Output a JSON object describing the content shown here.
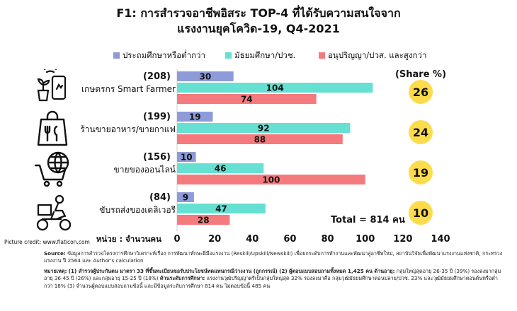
{
  "title": {
    "line1": "F1: การสำรวจอาชีพอิสระ TOP-4 ที่ได้รับความสนใจจาก",
    "line2": "แรงงานยุคโควิด-19, Q4-2021"
  },
  "share_label": "(Share %)",
  "total_label": "Total = 814 คน",
  "unit_label": "หน่วย : จำนวนคน",
  "credit": "Picture credit: www.flaticon.com",
  "notes": {
    "source_head": "Source:",
    "source_text": "ข้อมูลการสำรวจโครงการศึกษาวิเคราะห์เรื่อง การพัฒนาทักษะฝีมือแรงงาน (Reskill/Upskill/Newskill) เพื่อยกระดับการทำงานและพัฒนาสู่อาชีพใหม่, สถาบันวิจัยเพื่อพัฒนาแรงงานแห่งชาติ, กระทรวงแรงงาน ปี 2564 และ Author's calculation",
    "remark_head": "หมายเหตุ:",
    "remark_1": "(1) สำรวจผู้ประกันตน มาตรา 33 ที่ขึ้นทะเบียนขอรับประโยชน์ทดแทนกรณีว่างงาน (ถูกกรรณ์)",
    "remark_2_head": "(2) ผู้ตอบแบบสอบถามทั้งหมด 1,425 คน ด้านอายุ:",
    "remark_2_text": "กลุ่มใหญ่สุดอายุ 26-35 ปี (39%) รองลงมากลุ่มอายุ 36-45 ปี (26%) และกลุ่มอายุ 15-25 ปี (18%)",
    "remark_3_head": "ด้านระดับการศึกษา:",
    "remark_3_text": "แรงงานวุฒิปริญญาตรีเป็นกลุ่มใหญ่สุด 32% รองลงมาคือ กลุ่มวุฒิมัธยมศึกษาตอนปลาย/ปวช. 23% และวุฒิมัธยมศึกษาตอนต้นหรือต่ำกว่า 18% (3) จำนวนผู้ตอบแบบสอบถามข้อนี้ และมีข้อมูลระดับการศึกษา 814 คน ไม่ตอบข้อนี้ 485 คน"
  },
  "colors": {
    "primary": "#8e9bd9",
    "secondary": "#66e0d2",
    "bachelor": "#f47a7e",
    "share_circle": "#fddc4c"
  },
  "chart_data": {
    "type": "bar",
    "orientation": "horizontal",
    "categories": [
      "เกษตรกร Smart Farmer",
      "ร้านขายอาหาร/ขายกาแฟ",
      "ขายของออนไลน์",
      "ขับรถส่งของเดลิเวอรี"
    ],
    "category_totals": [
      "(208)",
      "(199)",
      "(156)",
      "(84)"
    ],
    "icons": [
      "smart-farmer-icon",
      "food-shop-icon",
      "online-shopping-icon",
      "delivery-rider-icon"
    ],
    "series": [
      {
        "name": "ประถมศึกษาหรือต่ำกว่า",
        "values": [
          30,
          19,
          10,
          9
        ]
      },
      {
        "name": "มัธยมศึกษา/ปวช.",
        "values": [
          104,
          92,
          46,
          47
        ]
      },
      {
        "name": "อนุปริญญา/ปวส. และสูงกว่า",
        "values": [
          74,
          88,
          100,
          28
        ]
      }
    ],
    "share_percent": [
      26,
      24,
      19,
      10
    ],
    "x_ticks": [
      0,
      20,
      40,
      60,
      80,
      100,
      120,
      140
    ],
    "xlim": [
      0,
      140
    ],
    "grid": false,
    "legend_position": "top"
  }
}
